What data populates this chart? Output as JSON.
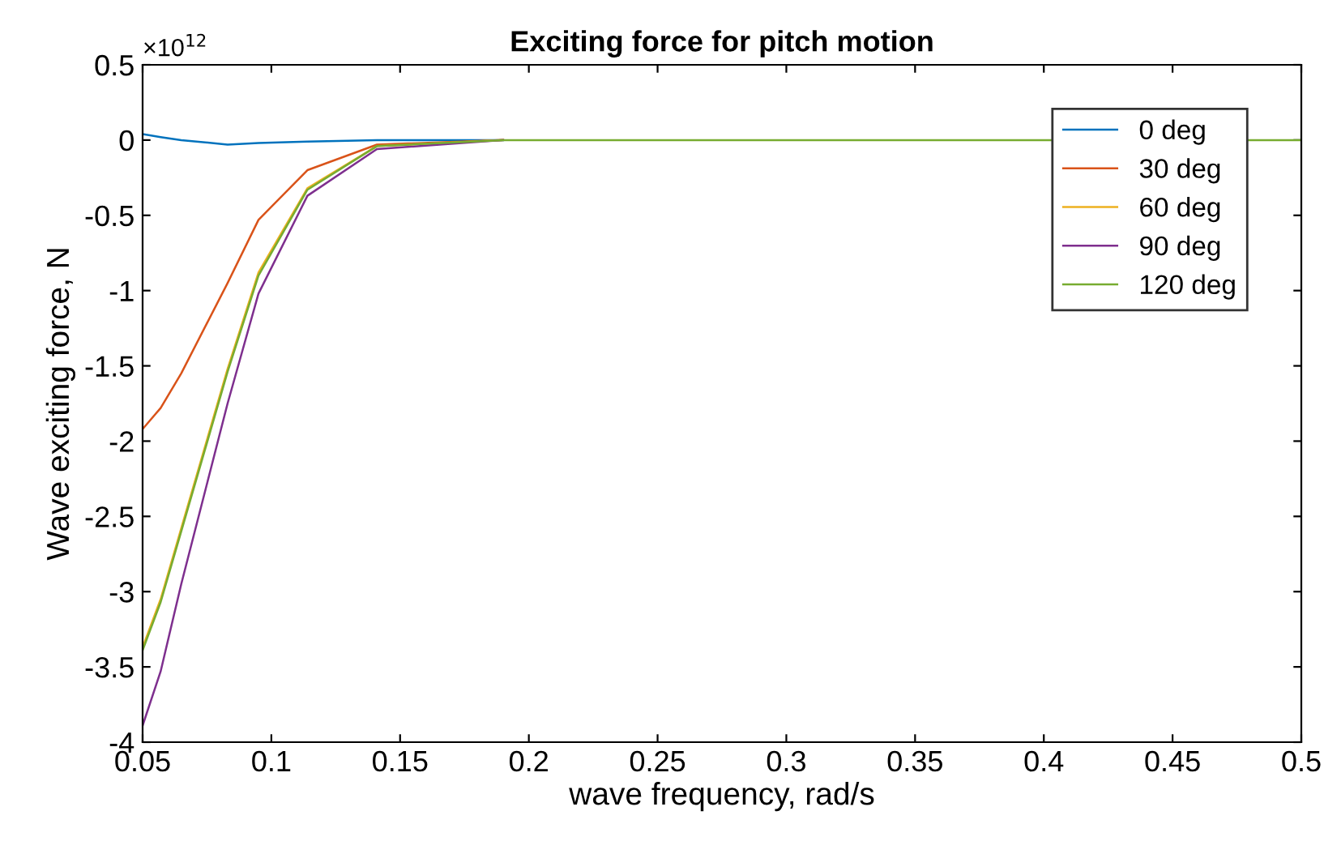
{
  "chart_data": {
    "type": "line",
    "title": "Exciting force for pitch motion",
    "xlabel": "wave frequency, rad/s",
    "ylabel": "Wave exciting force, N",
    "annotations": [
      "×10$^{12}$"
    ],
    "x": [
      0.05,
      0.057,
      0.065,
      0.083,
      0.095,
      0.114,
      0.141,
      0.19,
      0.3,
      0.4,
      0.5
    ],
    "series": [
      {
        "name": "0 deg",
        "color": "#0072bd",
        "x": [
          0.05,
          0.057,
          0.065,
          0.083,
          0.095,
          0.114,
          0.141,
          0.19
        ],
        "values": [
          0.04,
          0.02,
          0.0,
          -0.03,
          -0.02,
          -0.01,
          0,
          0
        ]
      },
      {
        "name": "30 deg",
        "color": "#d95319",
        "x": [
          0.05,
          0.057,
          0.065,
          0.083,
          0.095,
          0.114,
          0.141,
          0.19
        ],
        "values": [
          -1.92,
          -1.78,
          -1.55,
          -0.95,
          -0.53,
          -0.2,
          -0.03,
          0
        ]
      },
      {
        "name": "60 deg",
        "color": "#edb120",
        "x": [
          0.05,
          0.057,
          0.065,
          0.083,
          0.095,
          0.114,
          0.141,
          0.19
        ],
        "values": [
          -3.37,
          -3.05,
          -2.58,
          -1.52,
          -0.88,
          -0.32,
          -0.04,
          0
        ]
      },
      {
        "name": "90 deg",
        "color": "#7e2f8e",
        "x": [
          0.05,
          0.057,
          0.065,
          0.083,
          0.095,
          0.114,
          0.141,
          0.19
        ],
        "values": [
          -3.89,
          -3.53,
          -2.95,
          -1.75,
          -1.02,
          -0.37,
          -0.06,
          0
        ]
      },
      {
        "name": "120 deg",
        "color": "#77ac30",
        "values": [
          -3.39,
          -3.07,
          -2.6,
          -1.54,
          -0.9,
          -0.33,
          -0.04,
          0,
          0,
          0,
          0
        ]
      }
    ],
    "xlim": [
      0.05,
      0.5
    ],
    "xticks": [
      0.05,
      0.1,
      0.15,
      0.2,
      0.25,
      0.3,
      0.35,
      0.4,
      0.45,
      0.5
    ],
    "ylim": [
      -4,
      0.5
    ],
    "yticks": [
      -4,
      -3.5,
      -3,
      -2.5,
      -2,
      -1.5,
      -1,
      -0.5,
      0,
      0.5
    ],
    "grid": false,
    "legend": "top right",
    "marker": "none",
    "line_style": "solid"
  }
}
